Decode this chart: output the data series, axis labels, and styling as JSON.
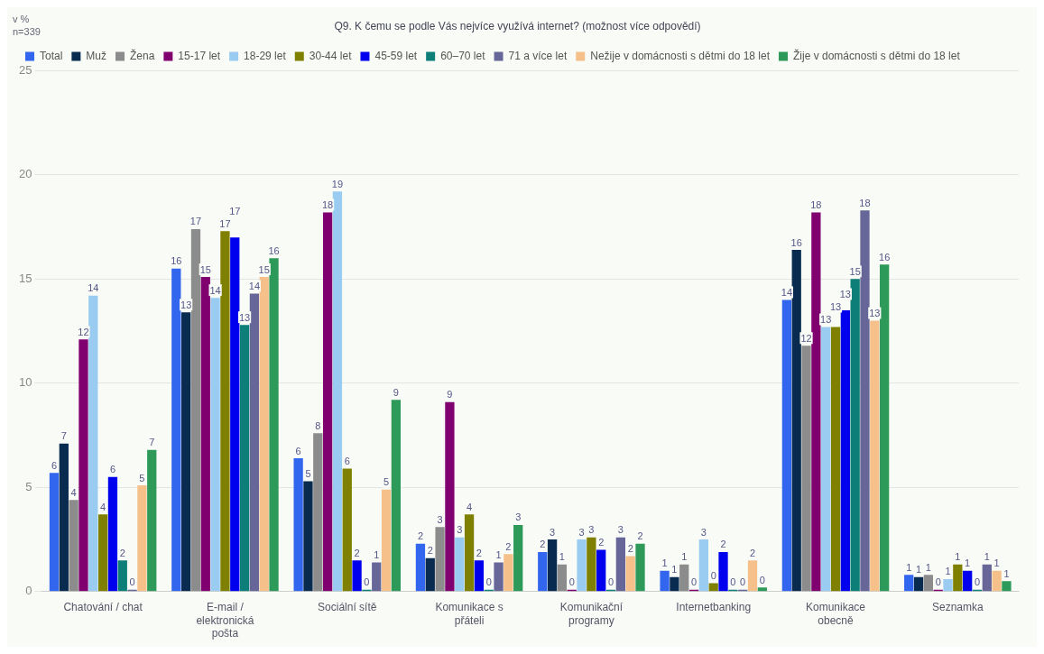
{
  "chart_data": {
    "type": "bar",
    "title": "Q9. K čemu se podle Vás nejvíce využívá internet? (možnost více odpovědí)",
    "annotations": [
      "v %",
      "n=339"
    ],
    "categories": [
      "Chatování / chat",
      "E-mail / elektronická pošta",
      "Sociální sítě",
      "Komunikace s přáteli",
      "Komunikační programy",
      "Internetbanking",
      "Komunikace obecně",
      "Seznamka"
    ],
    "ylim": [
      0,
      25
    ],
    "yticks": [
      0,
      5,
      10,
      15,
      20,
      25
    ],
    "grid": "y",
    "legend": "top",
    "series": [
      {
        "name": "Total",
        "color": "#3366ee",
        "values": [
          5.7,
          15.5,
          6.4,
          2.3,
          1.9,
          1.0,
          14.0,
          0.8
        ],
        "value_labels": [
          "6",
          "16",
          "6",
          "2",
          "2",
          "1",
          "14",
          "1"
        ]
      },
      {
        "name": "Muž",
        "color": "#0a2b50",
        "values": [
          7.1,
          13.4,
          5.3,
          1.6,
          2.5,
          0.7,
          16.4,
          0.7
        ],
        "value_labels": [
          "7",
          "13",
          "5",
          "2",
          "3",
          "1",
          "16",
          "1"
        ]
      },
      {
        "name": "Žena",
        "color": "#8c8c8c",
        "values": [
          4.4,
          17.4,
          7.6,
          3.1,
          1.3,
          1.3,
          11.8,
          0.8
        ],
        "value_labels": [
          "4",
          "17",
          "8",
          "3",
          "1",
          "1",
          "12",
          "1"
        ]
      },
      {
        "name": "15-17 let",
        "color": "#800070",
        "values": [
          12.1,
          15.1,
          18.2,
          9.1,
          0,
          0,
          18.2,
          0
        ],
        "value_labels": [
          "12",
          "15",
          "18",
          "9",
          "0",
          "0",
          "18",
          "0"
        ]
      },
      {
        "name": "18-29 let",
        "color": "#99ccf0",
        "values": [
          14.2,
          14.1,
          19.2,
          2.6,
          2.5,
          2.5,
          12.7,
          0.6
        ],
        "value_labels": [
          "14",
          "14",
          "19",
          "3",
          "3",
          "3",
          "13",
          "1"
        ]
      },
      {
        "name": "30-44 let",
        "color": "#808000",
        "values": [
          3.7,
          17.3,
          5.9,
          3.7,
          2.6,
          0.4,
          12.7,
          1.3
        ],
        "value_labels": [
          "4",
          "17",
          "6",
          "4",
          "3",
          "0",
          "13",
          "1"
        ]
      },
      {
        "name": "45-59 let",
        "color": "#0000ee",
        "values": [
          5.5,
          17.0,
          1.5,
          1.5,
          2.0,
          1.9,
          13.5,
          1.0
        ],
        "value_labels": [
          "6",
          "17",
          "2",
          "2",
          "2",
          "2",
          "13",
          "1"
        ]
      },
      {
        "name": "60–70 let",
        "color": "#0d7f78",
        "values": [
          1.5,
          12.8,
          0,
          0,
          0,
          0,
          15.0,
          0
        ],
        "value_labels": [
          "2",
          "13",
          "0",
          "0",
          "0",
          "0",
          "15",
          "0"
        ]
      },
      {
        "name": "71 a více let",
        "color": "#666699",
        "values": [
          0,
          14.3,
          1.4,
          1.4,
          2.6,
          0,
          18.3,
          1.3
        ],
        "value_labels": [
          "0",
          "14",
          "1",
          "1",
          "3",
          "0",
          "18",
          "1"
        ]
      },
      {
        "name": "Nežije v domácnosti s dětmi do 18 let",
        "color": "#f5c08a",
        "values": [
          5.1,
          15.1,
          4.9,
          1.8,
          1.7,
          1.5,
          13.0,
          1.0
        ],
        "value_labels": [
          "5",
          "15",
          "5",
          "2",
          "2",
          "2",
          "13",
          "1"
        ]
      },
      {
        "name": "Žije v domácnosti s dětmi do 18 let",
        "color": "#2e9a5a",
        "values": [
          6.8,
          16.0,
          9.2,
          3.2,
          2.3,
          0.2,
          15.7,
          0.5
        ],
        "value_labels": [
          "7",
          "16",
          "9",
          "3",
          "2",
          "0",
          "16",
          "1"
        ]
      }
    ]
  }
}
